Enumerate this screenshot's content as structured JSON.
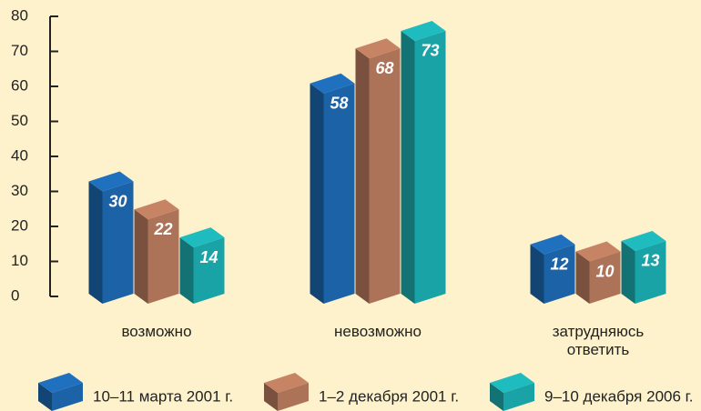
{
  "chart_data": {
    "type": "bar3d",
    "categories": [
      "возможно",
      "невозможно",
      "затрудняюсь ответить"
    ],
    "series": [
      {
        "name": "10–11 марта 2001 г.",
        "color": "#1b62a6",
        "values": [
          30,
          58,
          12
        ]
      },
      {
        "name": "1–2 декабря 2001 г.",
        "color": "#ad7358",
        "values": [
          22,
          68,
          10
        ]
      },
      {
        "name": "9–10 декабря 2006 г.",
        "color": "#1aa3a6",
        "values": [
          14,
          73,
          13
        ]
      }
    ],
    "ylim": [
      0,
      80
    ],
    "yticks": [
      0,
      10,
      20,
      30,
      40,
      50,
      60,
      70,
      80
    ],
    "legend": "bottom"
  }
}
